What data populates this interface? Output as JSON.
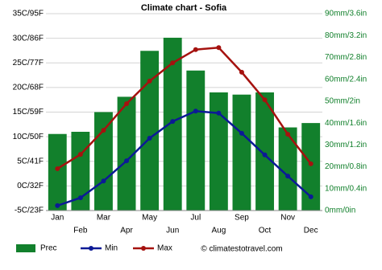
{
  "chart_data": {
    "type": "climate",
    "title": "Climate chart - Sofia",
    "categories": [
      "Jan",
      "Feb",
      "Mar",
      "Apr",
      "May",
      "Jun",
      "Jul",
      "Aug",
      "Sep",
      "Oct",
      "Nov",
      "Dec"
    ],
    "series": [
      {
        "name": "Prec",
        "type": "bar",
        "axis": "y2",
        "color": "#12802c",
        "values": [
          35,
          36,
          45,
          52,
          73,
          79,
          64,
          54,
          53,
          54,
          38,
          40
        ]
      },
      {
        "name": "Min",
        "type": "line",
        "color": "#0c1a96",
        "values": [
          -4.0,
          -2.4,
          1.0,
          5.1,
          9.7,
          13.1,
          15.2,
          14.8,
          10.7,
          6.3,
          2.0,
          -2.2
        ]
      },
      {
        "name": "Max",
        "type": "line",
        "color": "#a5120f",
        "values": [
          3.5,
          6.4,
          11.3,
          16.7,
          21.3,
          25.0,
          27.7,
          28.1,
          23.1,
          17.5,
          10.5,
          4.5
        ]
      }
    ],
    "ylim": [
      -5,
      35
    ],
    "yticks": [
      {
        "value": -5,
        "label": "-5C/23F"
      },
      {
        "value": 0,
        "label": "0C/32F"
      },
      {
        "value": 5,
        "label": "5C/41F"
      },
      {
        "value": 10,
        "label": "10C/50F"
      },
      {
        "value": 15,
        "label": "15C/59F"
      },
      {
        "value": 20,
        "label": "20C/68F"
      },
      {
        "value": 25,
        "label": "25C/77F"
      },
      {
        "value": 30,
        "label": "30C/86F"
      },
      {
        "value": 35,
        "label": "35C/95F"
      }
    ],
    "y2lim": [
      0,
      90
    ],
    "y2ticks": [
      {
        "value": 0,
        "label": "0mm/0in"
      },
      {
        "value": 10,
        "label": "10mm/0.4in"
      },
      {
        "value": 20,
        "label": "20mm/0.8in"
      },
      {
        "value": 30,
        "label": "30mm/1.2in"
      },
      {
        "value": 40,
        "label": "40mm/1.6in"
      },
      {
        "value": 50,
        "label": "50mm/2in"
      },
      {
        "value": 60,
        "label": "60mm/2.4in"
      },
      {
        "value": 70,
        "label": "70mm/2.8in"
      },
      {
        "value": 80,
        "label": "80mm/3.2in"
      },
      {
        "value": 90,
        "label": "90mm/3.6in"
      }
    ],
    "grid": true,
    "source": "© climatestotravel.com"
  }
}
